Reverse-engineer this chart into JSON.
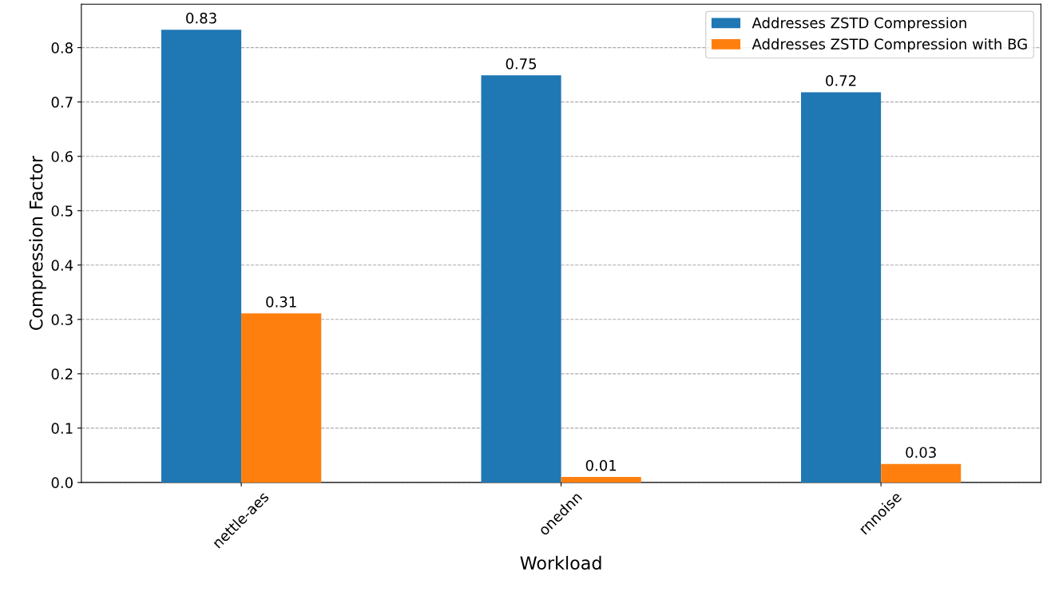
{
  "chart_data": {
    "type": "bar",
    "xlabel": "Workload",
    "ylabel": "Compression Factor",
    "categories": [
      "nettle-aes",
      "onednn",
      "rnnoise"
    ],
    "series": [
      {
        "name": "Addresses ZSTD Compression",
        "color": "#1f77b4",
        "values": [
          0.833,
          0.749,
          0.718
        ],
        "value_labels": [
          "0.83",
          "0.75",
          "0.72"
        ]
      },
      {
        "name": "Addresses ZSTD Compression with BG",
        "color": "#ff7f0e",
        "values": [
          0.311,
          0.01,
          0.034
        ],
        "value_labels": [
          "0.31",
          "0.01",
          "0.03"
        ]
      }
    ],
    "ylim": [
      0,
      0.88
    ],
    "yticks": [
      {
        "value": 0,
        "label": "0.0"
      },
      0.1,
      0.2,
      0.3,
      0.4,
      0.5,
      0.6,
      0.7,
      0.8
    ],
    "grid": "y",
    "legend": "top right"
  }
}
